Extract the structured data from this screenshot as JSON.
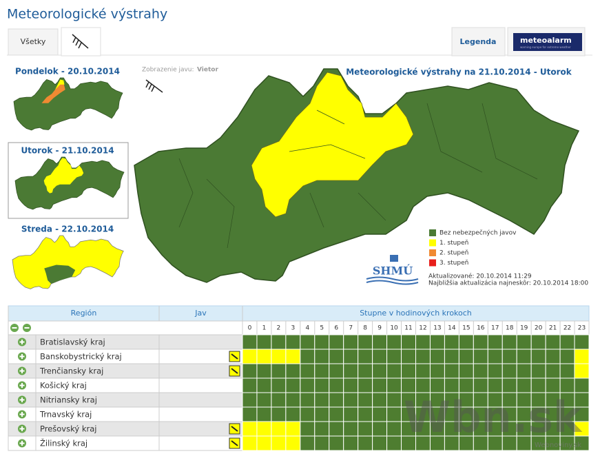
{
  "header": {
    "title": "Meteorologické výstrahy"
  },
  "tabs": {
    "all": "Všetky",
    "legend": "Legenda",
    "logo": "meteoalarm",
    "logo_sub": "warning europe for extreme weather"
  },
  "days": [
    "Pondelok - 20.10.2014",
    "Utorok - 21.10.2014",
    "Streda - 22.10.2014"
  ],
  "phenomenon": {
    "label": "Zobrazenie javu:",
    "value": "Vietor"
  },
  "map": {
    "title": "Meteorologické výstrahy na 21.10.2014 - Utorok",
    "legend": [
      {
        "label": "Bez nebezpečných javov",
        "color": "#4b7a34"
      },
      {
        "label": "1. stupeň",
        "color": "#ffff00"
      },
      {
        "label": "2. stupeň",
        "color": "#f08a32"
      },
      {
        "label": "3. stupeň",
        "color": "#e8201c"
      }
    ],
    "logo": "SHMÚ",
    "updated": "Aktualizované: 20.10.2014 11:29",
    "next": "Najbližšia aktualizácia najneskôr: 20.10.2014 18:00"
  },
  "table": {
    "headers": [
      "Región",
      "Jav",
      "Stupne v hodinových krokoch"
    ],
    "hours": [
      0,
      1,
      2,
      3,
      4,
      5,
      6,
      7,
      8,
      9,
      10,
      11,
      12,
      13,
      14,
      15,
      16,
      17,
      18,
      19,
      20,
      21,
      22,
      23
    ],
    "level_colors": [
      "#4e7d30",
      "#ffff00"
    ],
    "rows": [
      {
        "region": "Bratislavský kraj",
        "icon": false,
        "levels": [
          0,
          0,
          0,
          0,
          0,
          0,
          0,
          0,
          0,
          0,
          0,
          0,
          0,
          0,
          0,
          0,
          0,
          0,
          0,
          0,
          0,
          0,
          0,
          0
        ]
      },
      {
        "region": "Banskobystrický kraj",
        "icon": true,
        "levels": [
          1,
          1,
          1,
          1,
          0,
          0,
          0,
          0,
          0,
          0,
          0,
          0,
          0,
          0,
          0,
          0,
          0,
          0,
          0,
          0,
          0,
          0,
          0,
          1
        ]
      },
      {
        "region": "Trenčiansky kraj",
        "icon": true,
        "levels": [
          0,
          0,
          0,
          0,
          0,
          0,
          0,
          0,
          0,
          0,
          0,
          0,
          0,
          0,
          0,
          0,
          0,
          0,
          0,
          0,
          0,
          0,
          0,
          1
        ]
      },
      {
        "region": "Košický kraj",
        "icon": false,
        "levels": [
          0,
          0,
          0,
          0,
          0,
          0,
          0,
          0,
          0,
          0,
          0,
          0,
          0,
          0,
          0,
          0,
          0,
          0,
          0,
          0,
          0,
          0,
          0,
          0
        ]
      },
      {
        "region": "Nitriansky kraj",
        "icon": false,
        "levels": [
          0,
          0,
          0,
          0,
          0,
          0,
          0,
          0,
          0,
          0,
          0,
          0,
          0,
          0,
          0,
          0,
          0,
          0,
          0,
          0,
          0,
          0,
          0,
          0
        ]
      },
      {
        "region": "Trnavský kraj",
        "icon": false,
        "levels": [
          0,
          0,
          0,
          0,
          0,
          0,
          0,
          0,
          0,
          0,
          0,
          0,
          0,
          0,
          0,
          0,
          0,
          0,
          0,
          0,
          0,
          0,
          0,
          0
        ]
      },
      {
        "region": "Prešovský kraj",
        "icon": true,
        "levels": [
          1,
          1,
          1,
          1,
          0,
          0,
          0,
          0,
          0,
          0,
          0,
          0,
          0,
          0,
          0,
          0,
          0,
          0,
          0,
          0,
          0,
          0,
          0,
          1
        ]
      },
      {
        "region": "Žilinský kraj",
        "icon": true,
        "levels": [
          1,
          1,
          1,
          1,
          0,
          0,
          0,
          0,
          0,
          0,
          0,
          0,
          0,
          0,
          0,
          0,
          0,
          0,
          0,
          0,
          0,
          0,
          0,
          0
        ]
      }
    ]
  },
  "watermark": {
    "main": "Wbn.sk",
    "sub": "Webnoviny.sk"
  }
}
